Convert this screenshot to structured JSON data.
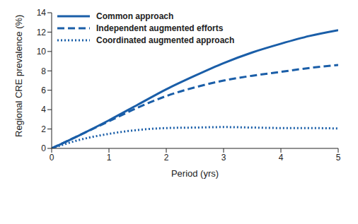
{
  "chart_data": {
    "type": "line",
    "x_label": "Period (yrs)",
    "y_label": "Regional CRE prevalence (%)",
    "x": [
      0,
      0.5,
      1,
      1.5,
      2,
      2.5,
      3,
      3.5,
      4,
      4.5,
      5
    ],
    "xlim": [
      0,
      5
    ],
    "xticks": [
      0,
      1,
      2,
      3,
      4,
      5
    ],
    "ylim": [
      0,
      14
    ],
    "yticks": [
      0,
      2,
      4,
      6,
      8,
      10,
      12,
      14
    ],
    "grid": false,
    "legend": "upper left",
    "series": [
      {
        "name": "Common approach",
        "color": "#1a5ea8",
        "line_style": "solid",
        "values": [
          0,
          1.4,
          2.9,
          4.5,
          6.1,
          7.5,
          8.8,
          9.9,
          10.8,
          11.6,
          12.2
        ]
      },
      {
        "name": "Independent augmented efforts",
        "color": "#1a5ea8",
        "line_style": "dashed",
        "values": [
          0,
          1.4,
          2.8,
          4.2,
          5.4,
          6.3,
          7.0,
          7.5,
          7.9,
          8.3,
          8.6
        ]
      },
      {
        "name": "Coordinated augmented approach",
        "color": "#1a5ea8",
        "line_style": "dotted",
        "values": [
          0,
          0.9,
          1.5,
          1.9,
          2.1,
          2.15,
          2.2,
          2.15,
          2.1,
          2.1,
          2.05
        ]
      }
    ]
  }
}
